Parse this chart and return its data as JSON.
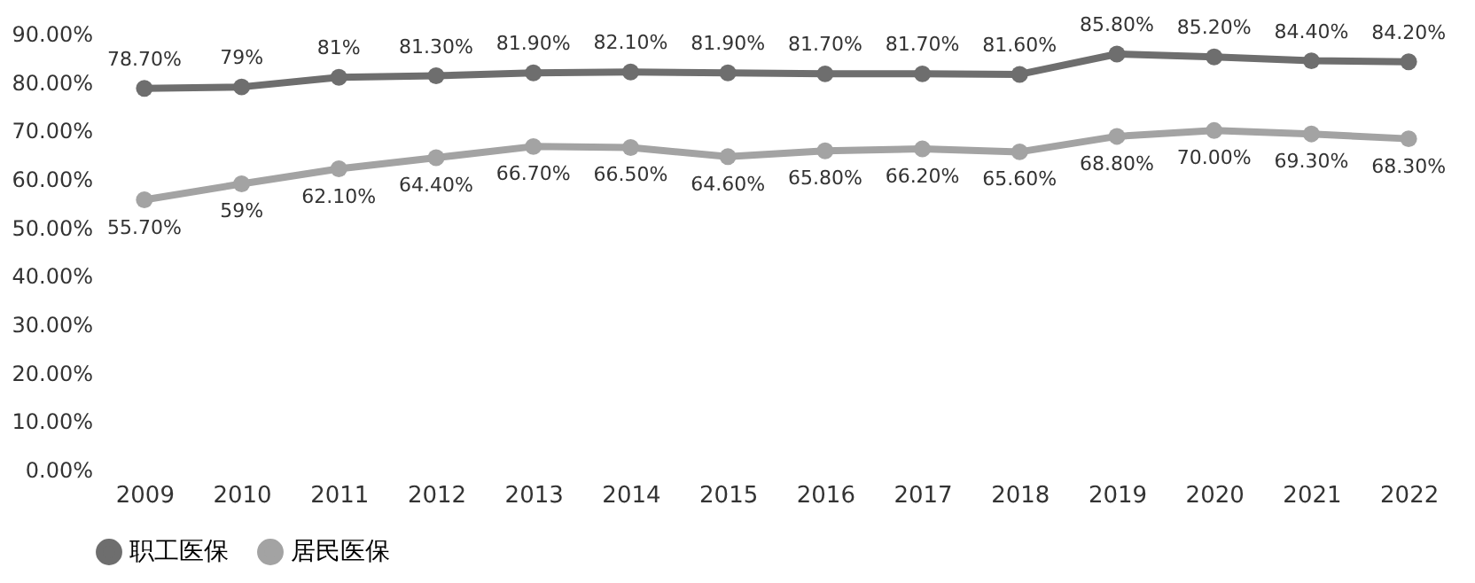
{
  "chart_data": {
    "type": "line",
    "categories": [
      "2009",
      "2010",
      "2011",
      "2012",
      "2013",
      "2014",
      "2015",
      "2016",
      "2017",
      "2018",
      "2019",
      "2020",
      "2021",
      "2022"
    ],
    "series": [
      {
        "name": "职工医保",
        "color": "#6e6e6e",
        "values": [
          78.7,
          79,
          81,
          81.3,
          81.9,
          82.1,
          81.9,
          81.7,
          81.7,
          81.6,
          85.8,
          85.2,
          84.4,
          84.2
        ],
        "value_labels": [
          "78.70%",
          "79%",
          "81%",
          "81.30%",
          "81.90%",
          "82.10%",
          "81.90%",
          "81.70%",
          "81.70%",
          "81.60%",
          "85.80%",
          "85.20%",
          "84.40%",
          "84.20%"
        ]
      },
      {
        "name": "居民医保",
        "color": "#a3a3a3",
        "values": [
          55.7,
          59,
          62.1,
          64.4,
          66.7,
          66.5,
          64.6,
          65.8,
          66.2,
          65.6,
          68.8,
          70.0,
          69.3,
          68.3
        ],
        "value_labels": [
          "55.70%",
          "59%",
          "62.10%",
          "64.40%",
          "66.70%",
          "66.50%",
          "64.60%",
          "65.80%",
          "66.20%",
          "65.60%",
          "68.80%",
          "70.00%",
          "69.30%",
          "68.30%"
        ]
      }
    ],
    "ylim": [
      0,
      90
    ],
    "yticks": [
      {
        "value": 0,
        "label": "0.00%"
      },
      {
        "value": 10,
        "label": "10.00%"
      },
      {
        "value": 20,
        "label": "20.00%"
      },
      {
        "value": 30,
        "label": "30.00%"
      },
      {
        "value": 40,
        "label": "40.00%"
      },
      {
        "value": 50,
        "label": "50.00%"
      },
      {
        "value": 60,
        "label": "60.00%"
      },
      {
        "value": 70,
        "label": "70.00%"
      },
      {
        "value": 80,
        "label": "80.00%"
      },
      {
        "value": 90,
        "label": "90.00%"
      }
    ],
    "legend": "bottom",
    "marker": "circle",
    "line_style": "solid"
  }
}
